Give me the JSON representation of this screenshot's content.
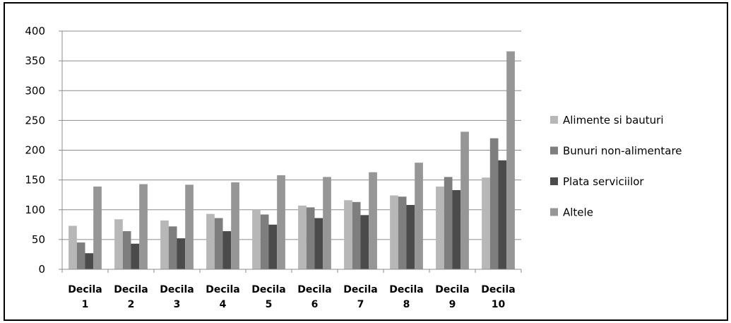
{
  "chart_data": {
    "type": "bar",
    "categories": [
      [
        "Decila",
        "1"
      ],
      [
        "Decila",
        "2"
      ],
      [
        "Decila",
        "3"
      ],
      [
        "Decila",
        "4"
      ],
      [
        "Decila",
        "5"
      ],
      [
        "Decila",
        "6"
      ],
      [
        "Decila",
        "7"
      ],
      [
        "Decila",
        "8"
      ],
      [
        "Decila",
        "9"
      ],
      [
        "Decila",
        "10"
      ]
    ],
    "series": [
      {
        "name": "Alimente si bauturi",
        "color": "#b7b7b7",
        "values": [
          73,
          84,
          82,
          93,
          100,
          107,
          116,
          124,
          139,
          154
        ]
      },
      {
        "name": "Bunuri non-alimentare",
        "color": "#7e7e7e",
        "values": [
          45,
          64,
          72,
          86,
          92,
          104,
          113,
          122,
          155,
          220
        ]
      },
      {
        "name": "Plata serviciilor",
        "color": "#4b4b4b",
        "values": [
          27,
          43,
          52,
          64,
          75,
          86,
          91,
          108,
          133,
          183
        ]
      },
      {
        "name": "Altele",
        "color": "#969696",
        "values": [
          139,
          143,
          142,
          146,
          158,
          155,
          163,
          179,
          231,
          366
        ]
      }
    ],
    "ylim": [
      0,
      400
    ],
    "yticks": [
      0,
      50,
      100,
      150,
      200,
      250,
      300,
      350,
      400
    ],
    "grid": true,
    "legend": "right",
    "title": "",
    "xlabel": "",
    "ylabel": ""
  }
}
